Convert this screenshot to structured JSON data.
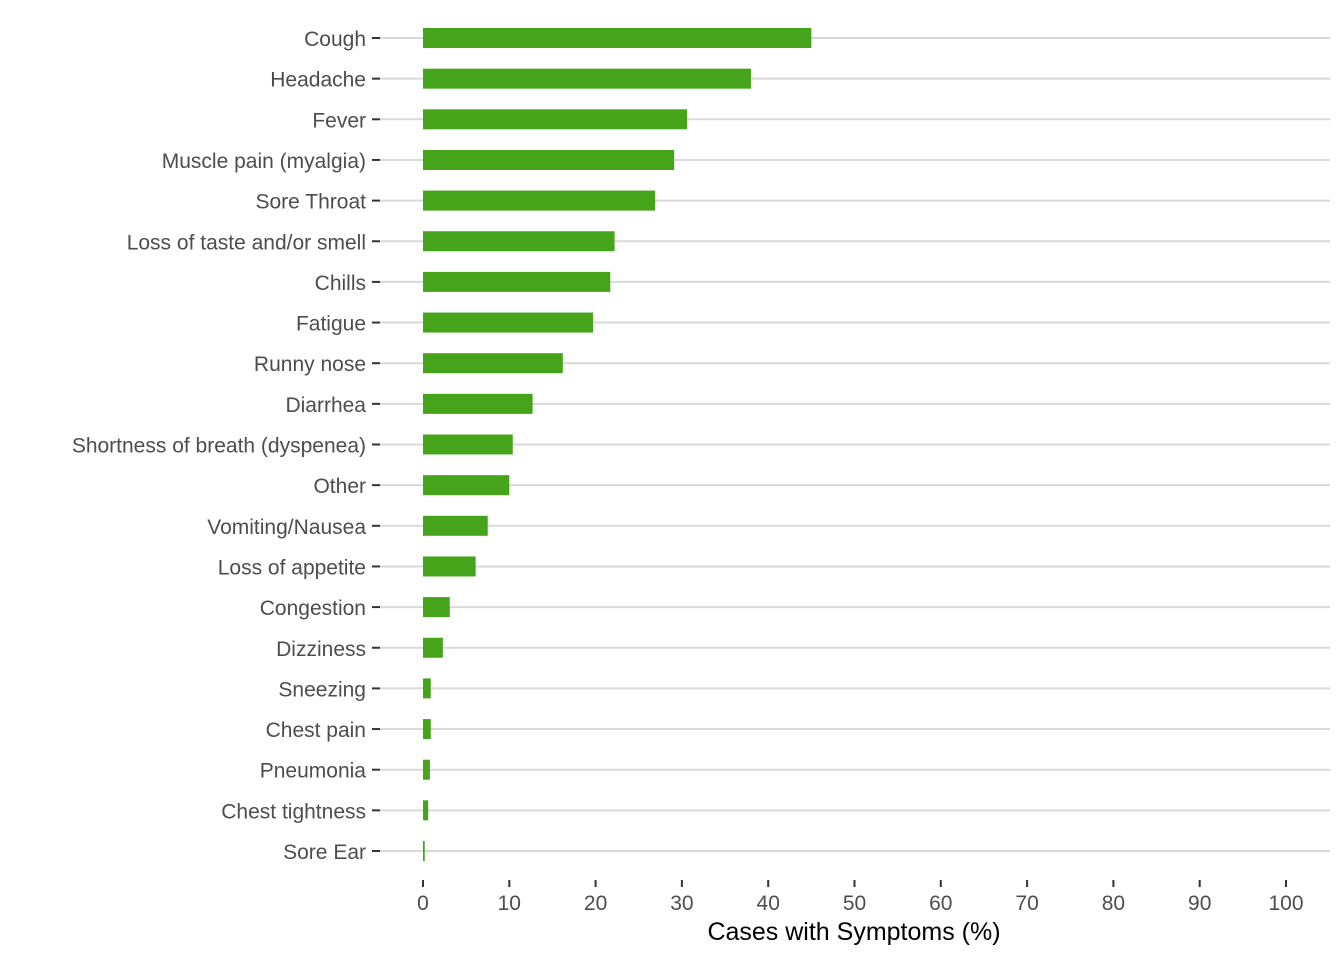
{
  "chart_data": {
    "type": "bar",
    "orientation": "horizontal",
    "categories": [
      "Cough",
      "Headache",
      "Fever",
      "Muscle pain (myalgia)",
      "Sore Throat",
      "Loss of taste and/or smell",
      "Chills",
      "Fatigue",
      "Runny nose",
      "Diarrhea",
      "Shortness of breath (dyspenea)",
      "Other",
      "Vomiting/Nausea",
      "Loss of appetite",
      "Congestion",
      "Dizziness",
      "Sneezing",
      "Chest pain",
      "Pneumonia",
      "Chest tightness",
      "Sore Ear"
    ],
    "values": [
      45.0,
      38.0,
      30.6,
      29.1,
      26.9,
      22.2,
      21.7,
      19.7,
      16.2,
      12.7,
      10.4,
      10.0,
      7.5,
      6.1,
      3.1,
      2.3,
      0.9,
      0.9,
      0.8,
      0.6,
      0.2
    ],
    "xlabel": "Cases with Symptoms (%)",
    "ylabel": "",
    "xlim": [
      0,
      100
    ],
    "x_ticks": [
      "0",
      "10",
      "20",
      "30",
      "40",
      "50",
      "60",
      "70",
      "80",
      "90",
      "100"
    ],
    "grid": "horizontal major lines",
    "colors": {
      "bar": "#45a41a",
      "grid": "#d9d9d9",
      "text": "#4d4d4d"
    }
  }
}
